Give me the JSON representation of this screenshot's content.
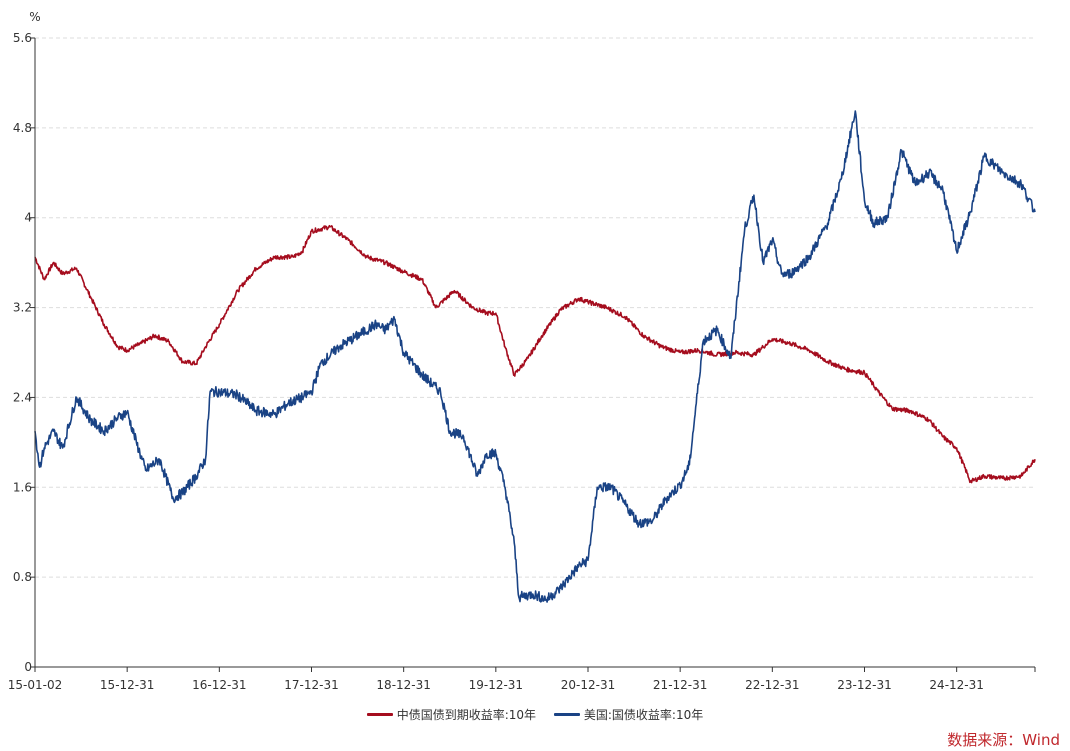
{
  "chart_data": {
    "type": "line",
    "unit_label": "%",
    "ylim": [
      0,
      5.6
    ],
    "y_ticks": [
      "0",
      "0.8",
      "1.6",
      "2.4",
      "3.2",
      "4",
      "4.8",
      "5.6"
    ],
    "x_start": "15-01-02",
    "x_tick_labels": [
      "15-01-02",
      "15-12-31",
      "16-12-31",
      "17-12-31",
      "18-12-31",
      "19-12-31",
      "20-12-31",
      "21-12-31",
      "22-12-31",
      "23-12-31",
      "24-12-31"
    ],
    "x_ticks_time": [
      2015.0,
      2016.0,
      2017.0,
      2018.0,
      2019.0,
      2020.0,
      2021.0,
      2022.0,
      2023.0,
      2024.0,
      2025.0
    ],
    "x_range": [
      2015.0,
      2025.85
    ],
    "grid": "horizontal dashed",
    "legend_position": "bottom-center",
    "series": [
      {
        "name": "中债国债到期收益率:10年",
        "color": "#a50d1e",
        "x": [
          2015.0,
          2015.1,
          2015.2,
          2015.3,
          2015.45,
          2015.6,
          2015.75,
          2015.9,
          2016.0,
          2016.15,
          2016.3,
          2016.45,
          2016.6,
          2016.75,
          2016.85,
          2017.0,
          2017.2,
          2017.4,
          2017.6,
          2017.8,
          2017.9,
          2018.0,
          2018.2,
          2018.4,
          2018.6,
          2018.8,
          2019.0,
          2019.2,
          2019.35,
          2019.55,
          2019.75,
          2019.9,
          2020.0,
          2020.1,
          2020.2,
          2020.35,
          2020.5,
          2020.7,
          2020.9,
          2021.0,
          2021.2,
          2021.4,
          2021.6,
          2021.8,
          2022.0,
          2022.2,
          2022.4,
          2022.6,
          2022.8,
          2022.9,
          2023.0,
          2023.2,
          2023.4,
          2023.6,
          2023.8,
          2024.0,
          2024.15,
          2024.3,
          2024.5,
          2024.7,
          2024.85,
          2025.0,
          2025.15,
          2025.3,
          2025.5,
          2025.7,
          2025.85
        ],
        "values": [
          3.65,
          3.45,
          3.6,
          3.5,
          3.55,
          3.3,
          3.05,
          2.85,
          2.82,
          2.88,
          2.95,
          2.9,
          2.72,
          2.7,
          2.85,
          3.05,
          3.35,
          3.55,
          3.65,
          3.65,
          3.7,
          3.88,
          3.92,
          3.8,
          3.65,
          3.6,
          3.52,
          3.45,
          3.2,
          3.35,
          3.2,
          3.15,
          3.15,
          2.85,
          2.6,
          2.75,
          2.95,
          3.18,
          3.28,
          3.25,
          3.2,
          3.12,
          2.95,
          2.85,
          2.8,
          2.82,
          2.78,
          2.8,
          2.78,
          2.85,
          2.92,
          2.88,
          2.82,
          2.72,
          2.65,
          2.62,
          2.45,
          2.3,
          2.28,
          2.2,
          2.05,
          1.95,
          1.65,
          1.7,
          1.68,
          1.7,
          1.85
        ]
      },
      {
        "name": "美国:国债收益率:10年",
        "color": "#1a4385",
        "x": [
          2015.0,
          2015.05,
          2015.1,
          2015.2,
          2015.3,
          2015.45,
          2015.6,
          2015.75,
          2015.9,
          2016.0,
          2016.1,
          2016.2,
          2016.35,
          2016.5,
          2016.6,
          2016.75,
          2016.85,
          2016.9,
          2017.0,
          2017.2,
          2017.4,
          2017.6,
          2017.75,
          2017.9,
          2018.0,
          2018.1,
          2018.3,
          2018.5,
          2018.7,
          2018.8,
          2018.9,
          2019.0,
          2019.2,
          2019.4,
          2019.5,
          2019.65,
          2019.8,
          2019.9,
          2020.0,
          2020.1,
          2020.2,
          2020.25,
          2020.4,
          2020.55,
          2020.7,
          2020.9,
          2021.0,
          2021.1,
          2021.25,
          2021.4,
          2021.55,
          2021.7,
          2021.85,
          2022.0,
          2022.1,
          2022.25,
          2022.4,
          2022.55,
          2022.7,
          2022.8,
          2022.9,
          2023.0,
          2023.1,
          2023.2,
          2023.4,
          2023.6,
          2023.75,
          2023.9,
          2024.0,
          2024.1,
          2024.25,
          2024.4,
          2024.55,
          2024.7,
          2024.85,
          2025.0,
          2025.15,
          2025.3,
          2025.5,
          2025.7,
          2025.85
        ],
        "values": [
          2.1,
          1.78,
          1.95,
          2.1,
          1.95,
          2.4,
          2.2,
          2.1,
          2.22,
          2.27,
          2.0,
          1.75,
          1.85,
          1.5,
          1.55,
          1.7,
          1.85,
          2.45,
          2.45,
          2.42,
          2.28,
          2.25,
          2.35,
          2.4,
          2.45,
          2.7,
          2.85,
          2.95,
          3.05,
          3.0,
          3.1,
          2.8,
          2.6,
          2.45,
          2.1,
          2.05,
          1.7,
          1.9,
          1.9,
          1.6,
          1.1,
          0.62,
          0.65,
          0.6,
          0.7,
          0.9,
          0.95,
          1.6,
          1.6,
          1.45,
          1.28,
          1.3,
          1.5,
          1.62,
          1.8,
          2.9,
          3.0,
          2.75,
          3.9,
          4.2,
          3.6,
          3.8,
          3.5,
          3.5,
          3.65,
          3.95,
          4.35,
          4.95,
          4.15,
          3.95,
          4.0,
          4.6,
          4.3,
          4.4,
          4.25,
          3.7,
          4.05,
          4.55,
          4.4,
          4.3,
          4.05
        ]
      }
    ]
  },
  "source_text": "数据来源：Wind"
}
